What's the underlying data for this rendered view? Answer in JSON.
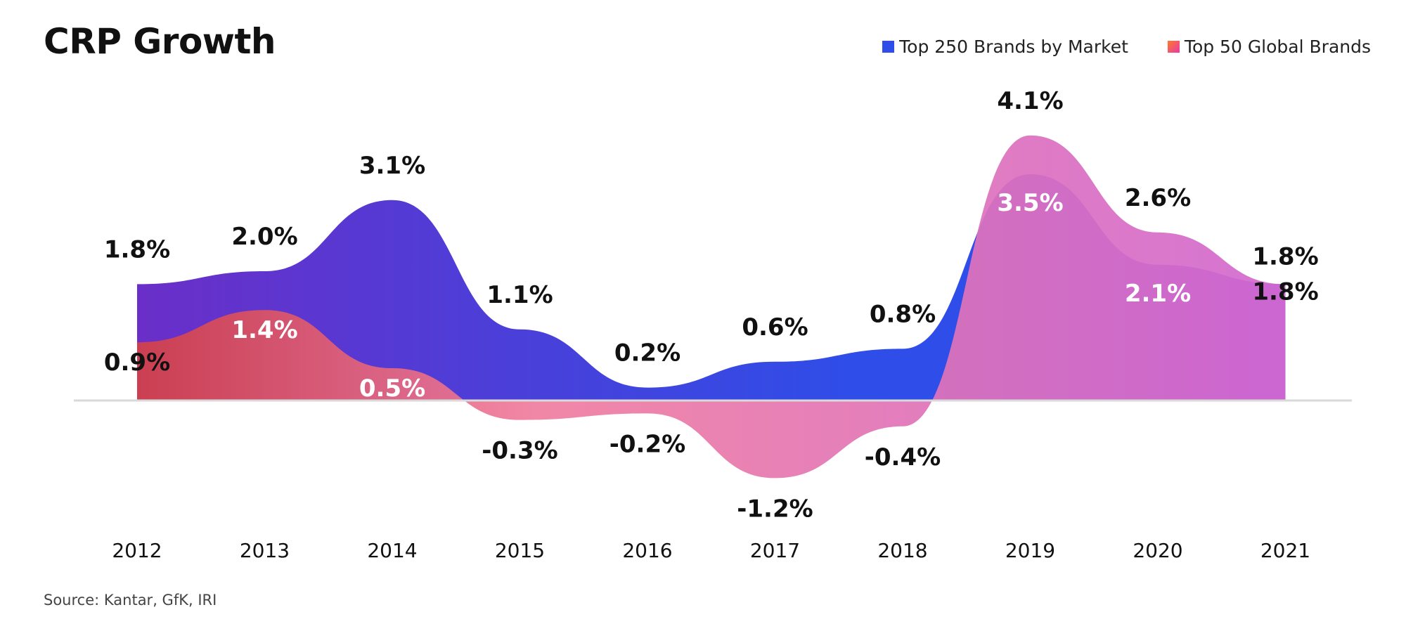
{
  "title": "CRP Growth",
  "source": "Source: Kantar, GfK, IRI",
  "legend": [
    {
      "label": "Top 250 Brands by Market",
      "color": "#2f4de8",
      "icon": "square-swatch"
    },
    {
      "label": "Top 50 Global Brands",
      "color": "#ee5a8a",
      "icon": "gradient-square-swatch"
    }
  ],
  "colors": {
    "top250_start": "#6a2fc8",
    "top250_mid": "#2f4de8",
    "top250_end": "#7a2ae6",
    "top50_start": "#d24048",
    "top50_mid": "#f07ea0",
    "top50_end": "#d26ad0",
    "baseline": "#d9d9d9"
  },
  "chart_data": {
    "type": "area",
    "title": "CRP Growth",
    "categories": [
      "2012",
      "2013",
      "2014",
      "2015",
      "2016",
      "2017",
      "2018",
      "2019",
      "2020",
      "2021"
    ],
    "series": [
      {
        "name": "Top 250 Brands by Market",
        "values": [
          1.8,
          2.0,
          3.1,
          1.1,
          0.2,
          0.6,
          0.8,
          3.5,
          2.1,
          1.8
        ],
        "labels": [
          "1.8%",
          "2.0%",
          "3.1%",
          "1.1%",
          "0.2%",
          "0.6%",
          "0.8%",
          "3.5%",
          "2.1%",
          "1.8%"
        ]
      },
      {
        "name": "Top 50 Global Brands",
        "values": [
          0.9,
          1.4,
          0.5,
          -0.3,
          -0.2,
          -1.2,
          -0.4,
          4.1,
          2.6,
          1.8
        ],
        "labels": [
          "0.9%",
          "1.4%",
          "0.5%",
          "-0.3%",
          "-0.2%",
          "-1.2%",
          "-0.4%",
          "4.1%",
          "2.6%",
          "1.8%"
        ]
      }
    ],
    "ylim": [
      -2.2,
      4.6
    ],
    "grid": false,
    "legend_position": "top-right"
  }
}
